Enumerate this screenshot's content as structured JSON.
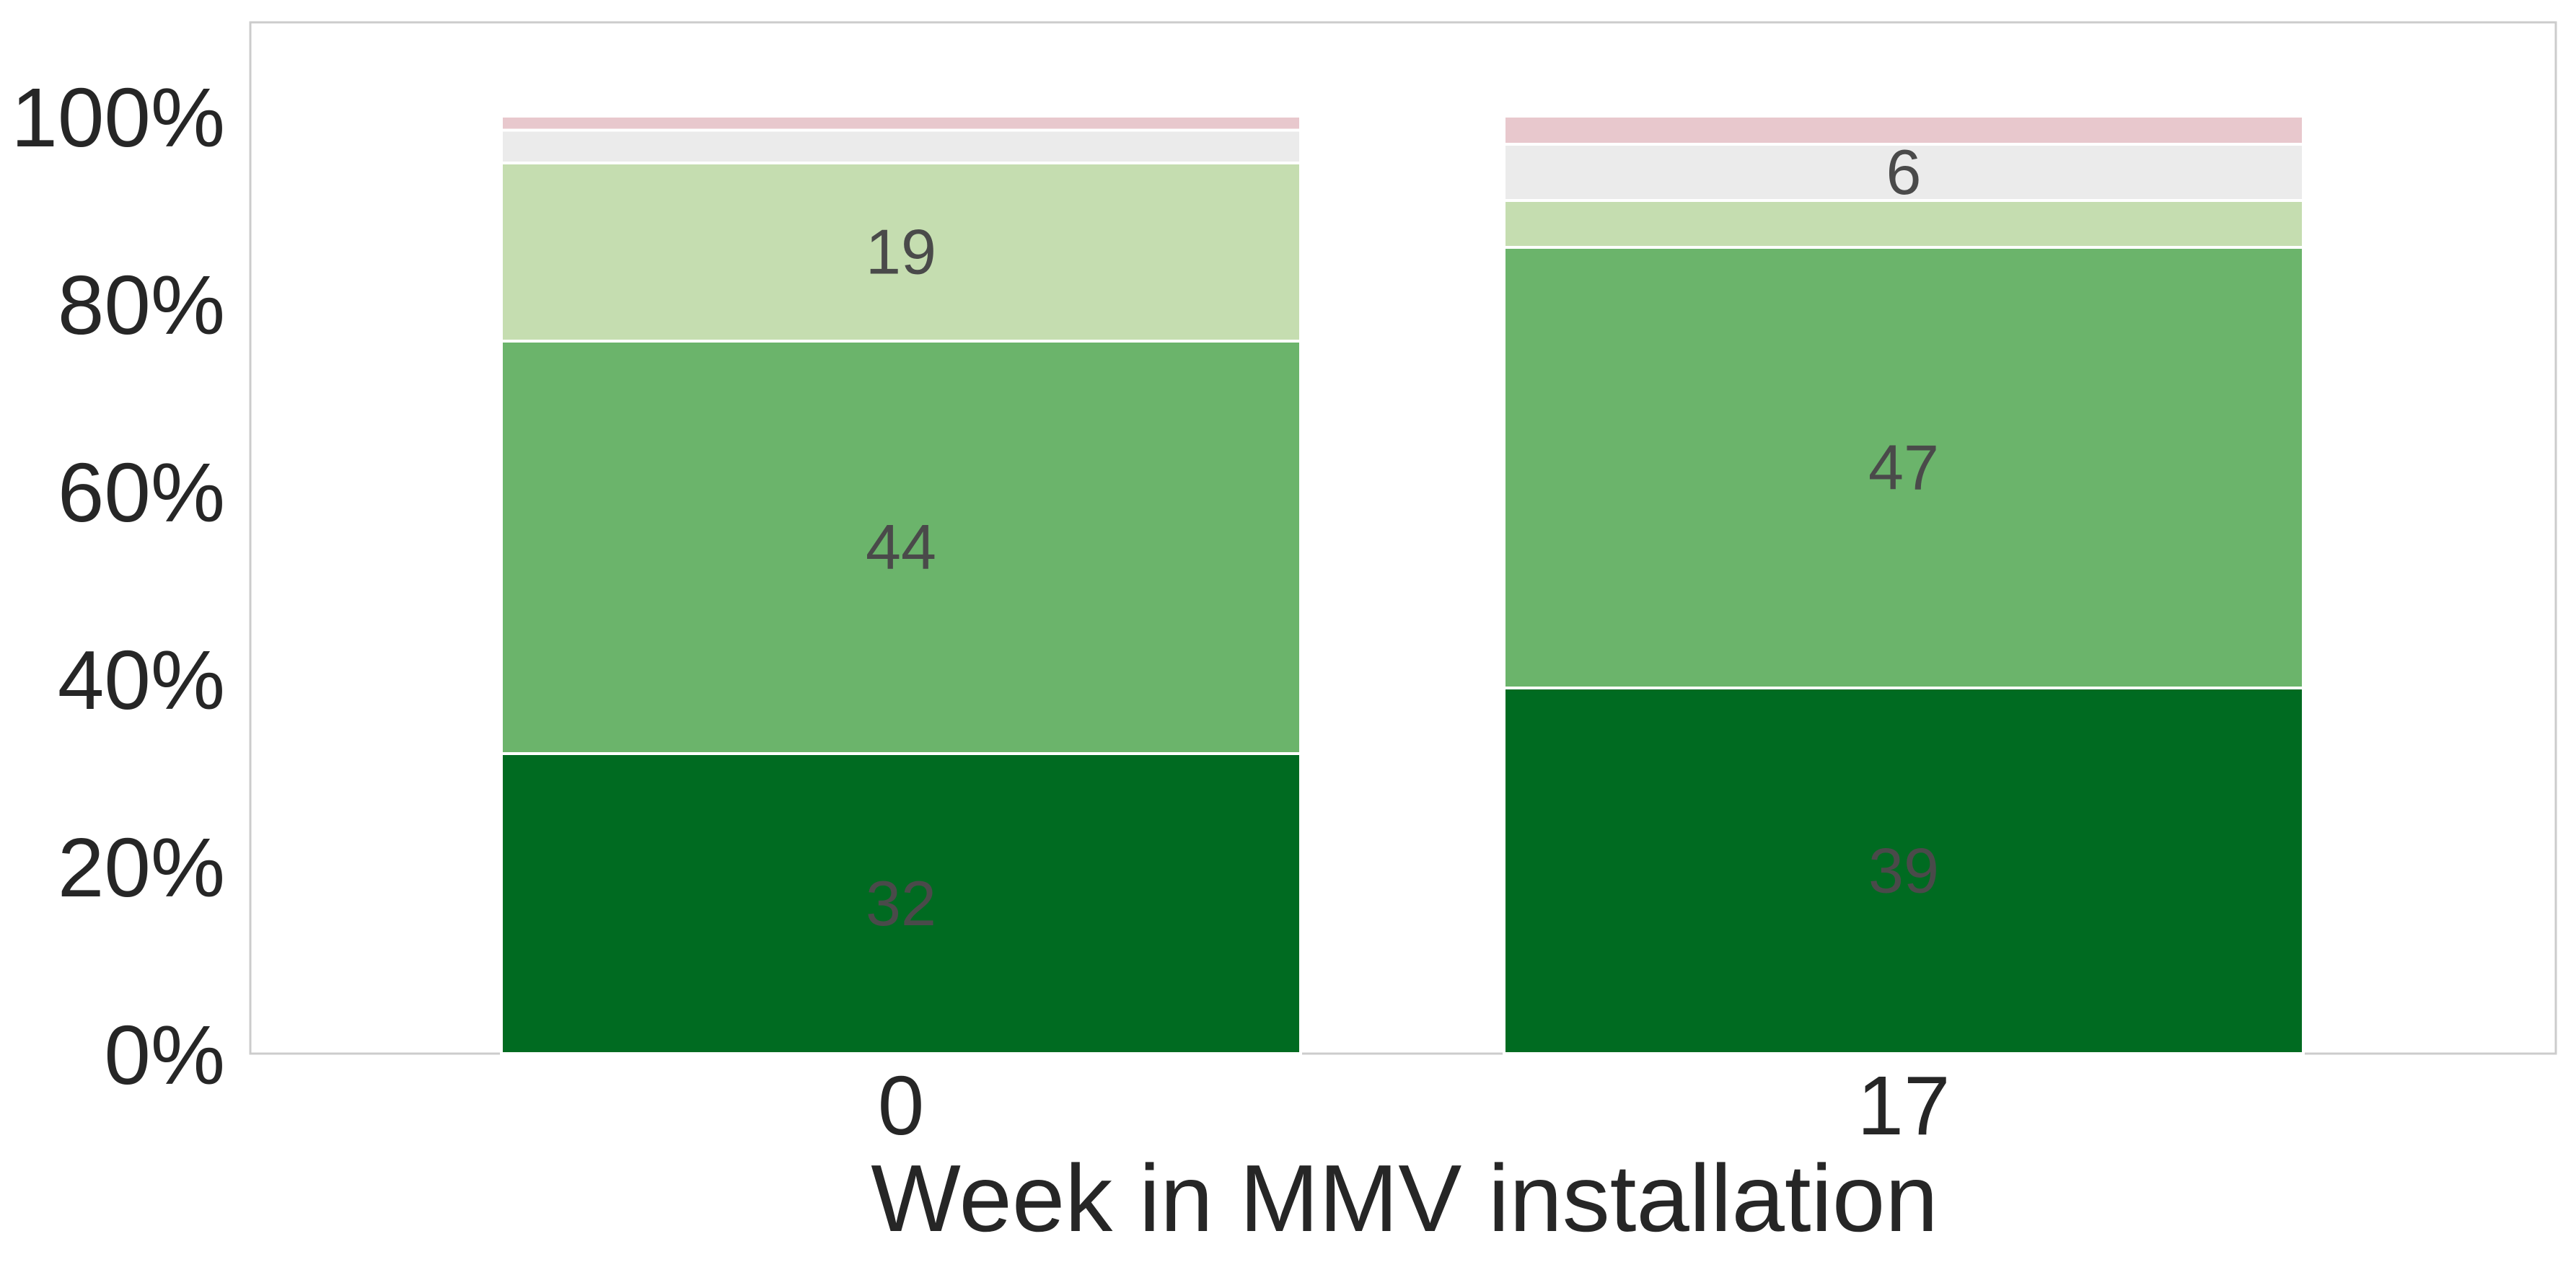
{
  "chart_data": {
    "type": "bar",
    "stacked": true,
    "percent": true,
    "categories": [
      "0",
      "17"
    ],
    "series": [
      {
        "color": "#006b21",
        "values": [
          32,
          39
        ]
      },
      {
        "color": "#6bb46b",
        "values": [
          44,
          47
        ]
      },
      {
        "color": "#c5ddb0",
        "values": [
          19,
          5
        ]
      },
      {
        "color": "#ebebeb",
        "values": [
          3.5,
          6
        ]
      },
      {
        "color": "#e8c8cd",
        "values": [
          1.5,
          3
        ]
      }
    ],
    "data_labels": [
      [
        "32",
        "39"
      ],
      [
        "44",
        "47"
      ],
      [
        "19",
        ""
      ],
      [
        "",
        "6"
      ],
      [
        "",
        ""
      ]
    ],
    "xlabel": "Week in MMV installation",
    "ylabel": "",
    "ylim": [
      0,
      110
    ],
    "yticks": [
      0,
      20,
      40,
      60,
      80,
      100
    ],
    "ytick_labels": [
      "0%",
      "20%",
      "40%",
      "60%",
      "80%",
      "100%"
    ],
    "grid": false,
    "legend": "none"
  }
}
